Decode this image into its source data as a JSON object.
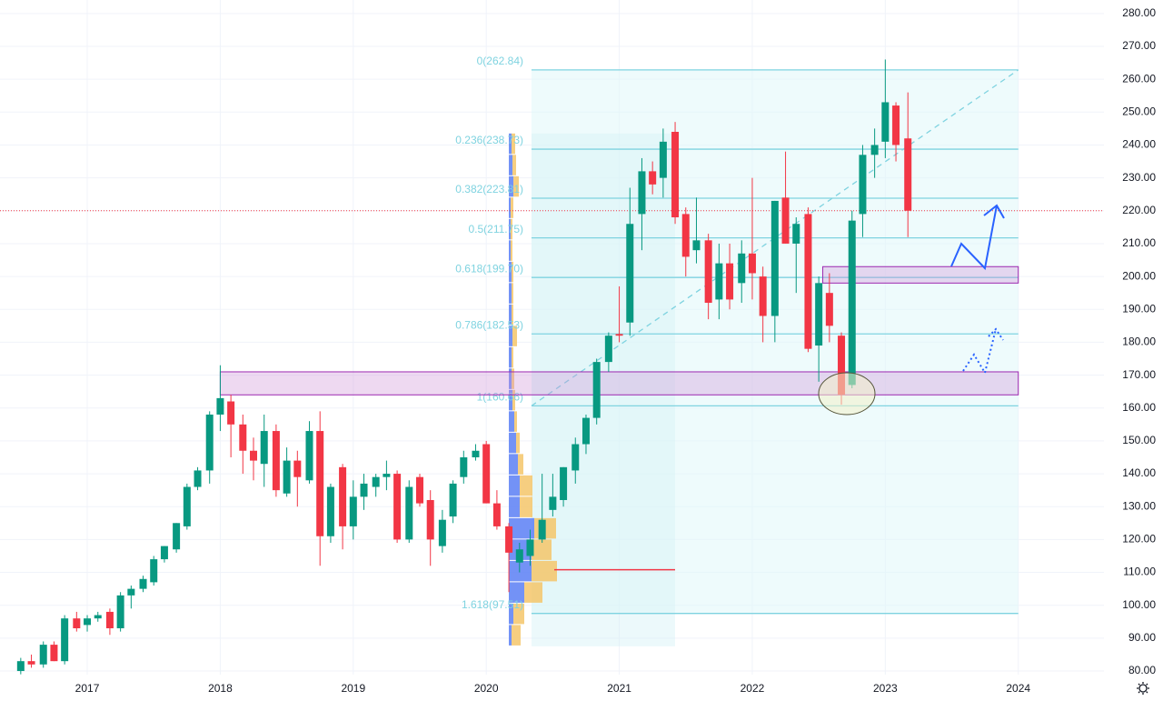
{
  "chart_data": {
    "type": "candlestick",
    "x": [
      2016.5,
      2016.58,
      2016.67,
      2016.75,
      2016.83,
      2016.92,
      2017.0,
      2017.08,
      2017.17,
      2017.25,
      2017.33,
      2017.42,
      2017.5,
      2017.58,
      2017.67,
      2017.75,
      2017.83,
      2017.92,
      2018.0,
      2018.08,
      2018.17,
      2018.25,
      2018.33,
      2018.42,
      2018.5,
      2018.58,
      2018.67,
      2018.75,
      2018.83,
      2018.92,
      2019.0,
      2019.08,
      2019.17,
      2019.25,
      2019.33,
      2019.42,
      2019.5,
      2019.58,
      2019.67,
      2019.75,
      2019.83,
      2019.92,
      2020.0,
      2020.08,
      2020.17,
      2020.25,
      2020.33,
      2020.42,
      2020.5,
      2020.58,
      2020.67,
      2020.75,
      2020.83,
      2020.92,
      2021.0,
      2021.08,
      2021.17,
      2021.25,
      2021.33,
      2021.42,
      2021.5,
      2021.58,
      2021.67,
      2021.75,
      2021.83,
      2021.92,
      2022.0,
      2022.08,
      2022.17,
      2022.25,
      2022.33,
      2022.42,
      2022.5,
      2022.58,
      2022.67,
      2022.75,
      2022.83,
      2022.92,
      2023.0,
      2023.08,
      2023.17
    ],
    "open": [
      80,
      83,
      82,
      88,
      83,
      96,
      94,
      96,
      98,
      93,
      103,
      105,
      107,
      114,
      117,
      124,
      136,
      141,
      158,
      162,
      155,
      147,
      143,
      153,
      134,
      144,
      138,
      153,
      121,
      142,
      124,
      133,
      136,
      139,
      140,
      120,
      139,
      132,
      118,
      127,
      139,
      145,
      149,
      131,
      124,
      113,
      115,
      120,
      129,
      132,
      141,
      149,
      157,
      174,
      182.5,
      186,
      219,
      232,
      230,
      244,
      219,
      208,
      211,
      193,
      204,
      198,
      207,
      200,
      188,
      224,
      210,
      219,
      179,
      195,
      182,
      167,
      219,
      237,
      241,
      252,
      242
    ],
    "high": [
      84,
      85,
      89,
      89,
      97,
      98,
      97,
      98,
      99,
      104,
      106,
      109,
      115,
      118,
      125,
      137,
      142,
      159,
      173,
      164,
      158,
      151,
      158,
      155,
      148,
      147,
      156,
      159,
      137,
      143,
      138,
      140,
      140,
      144,
      141,
      138,
      140,
      135,
      129,
      138,
      147,
      149,
      150,
      135,
      125,
      119,
      123,
      140,
      140,
      142,
      151,
      158,
      175,
      183,
      197,
      227,
      236,
      235,
      245,
      247,
      221,
      224,
      213,
      210,
      210,
      211,
      230,
      203,
      223,
      238,
      218,
      221,
      200,
      201,
      183,
      220,
      240,
      245,
      266,
      253,
      256
    ],
    "low": [
      79,
      81,
      81,
      83,
      82,
      92,
      92,
      95,
      91,
      92,
      99,
      104,
      106,
      113,
      116,
      123,
      135,
      137,
      153,
      145,
      140,
      138,
      136,
      133,
      133,
      130,
      137,
      112,
      119,
      117,
      120,
      129,
      133,
      135,
      119,
      119,
      130,
      112,
      116,
      125,
      137,
      144,
      131,
      123,
      104,
      110,
      112,
      119,
      127,
      130,
      137,
      146,
      155,
      171,
      180,
      182,
      208,
      225,
      224,
      216,
      200,
      204,
      187,
      187,
      190,
      192,
      193,
      180,
      180,
      210,
      195,
      177,
      168,
      180,
      161,
      166,
      212,
      230,
      236,
      235,
      212
    ],
    "close": [
      83,
      82,
      88,
      83,
      96,
      93,
      96,
      97,
      93,
      103,
      105,
      108,
      114,
      118,
      125,
      136,
      141,
      158,
      163,
      155,
      147,
      144,
      153,
      135,
      144,
      139,
      153,
      121,
      136,
      124,
      133,
      137,
      139,
      140,
      120,
      136,
      131,
      120,
      126,
      137,
      145,
      147,
      131,
      124,
      116,
      117,
      120,
      126,
      133,
      142,
      149,
      157,
      174,
      182,
      182,
      216,
      232,
      228,
      241,
      218,
      206,
      211,
      192,
      204,
      193,
      207,
      201,
      188,
      223,
      210,
      216,
      178,
      198,
      185,
      164,
      217,
      237,
      240,
      253,
      240,
      220
    ],
    "up_color": "#089981",
    "down_color": "#f23645",
    "xlim": [
      2016.344,
      2024.644
    ],
    "ylim": [
      78.9,
      284.1
    ],
    "xticks": [
      2017,
      2018,
      2019,
      2020,
      2021,
      2022,
      2023,
      2024
    ],
    "yticks": [
      {
        "value": 80,
        "label": "80.00"
      },
      {
        "value": 90,
        "label": "90.00"
      },
      {
        "value": 100,
        "label": "100.00"
      },
      {
        "value": 110,
        "label": "110.00"
      },
      {
        "value": 120,
        "label": "120.00"
      },
      {
        "value": 130,
        "label": "130.00"
      },
      {
        "value": 140,
        "label": "140.00"
      },
      {
        "value": 150,
        "label": "150.00"
      },
      {
        "value": 160,
        "label": "160.00"
      },
      {
        "value": 170,
        "label": "170.00"
      },
      {
        "value": 180,
        "label": "180.00"
      },
      {
        "value": 190,
        "label": "190.00"
      },
      {
        "value": 200,
        "label": "200.00"
      },
      {
        "value": 210,
        "label": "210.00"
      },
      {
        "value": 220,
        "label": "220.00"
      },
      {
        "value": 230,
        "label": "230.00"
      },
      {
        "value": 240,
        "label": "240.00"
      },
      {
        "value": 250,
        "label": "250.00"
      },
      {
        "value": 260,
        "label": "260.00"
      },
      {
        "value": 270,
        "label": "270.00"
      },
      {
        "value": 280,
        "label": "280.00"
      }
    ],
    "grid": true,
    "current_price": 220,
    "fib": {
      "x": [
        2020.34,
        2024.0
      ],
      "color": "#7fd3e0",
      "levels": [
        {
          "value": 262.84,
          "label": "0(262.84)"
        },
        {
          "value": 238.73,
          "label": "0.236(238.73)"
        },
        {
          "value": 223.81,
          "label": "0.382(223.81)"
        },
        {
          "value": 211.75,
          "label": "0.5(211.75)"
        },
        {
          "value": 199.7,
          "label": "0.618(199.70)"
        },
        {
          "value": 182.53,
          "label": "0.786(182.53)"
        },
        {
          "value": 160.66,
          "label": "1(160.66)"
        },
        {
          "value": 97.51,
          "label": "1.618(97.51)"
        }
      ]
    },
    "zones": [
      {
        "x": [
          2018.0,
          2024.0
        ],
        "y": [
          164,
          171
        ]
      },
      {
        "x": [
          2022.53,
          2024.0
        ],
        "y": [
          198,
          203
        ]
      }
    ],
    "volume_profile": {
      "bins": [
        87.5,
        94,
        100.5,
        107,
        113.5,
        120,
        126.5,
        133,
        139.5,
        146,
        152.5,
        159,
        165.5,
        172,
        178.5,
        185,
        191.5,
        198,
        204.5,
        211,
        217.5,
        224,
        230.5,
        237,
        243.5
      ],
      "up": [
        3,
        5,
        17,
        25,
        25,
        28,
        12,
        12,
        10,
        8,
        6,
        4,
        3,
        3,
        4,
        3,
        3,
        3,
        2,
        2,
        2,
        5,
        4,
        3
      ],
      "down": [
        10,
        12,
        20,
        28,
        22,
        24,
        14,
        14,
        6,
        4,
        3,
        3,
        3,
        2,
        5,
        2,
        2,
        2,
        2,
        2,
        3,
        6,
        4,
        4
      ],
      "up_color": "#5b7ff5",
      "down_color": "#f5c66a",
      "poc": 110.8
    }
  }
}
